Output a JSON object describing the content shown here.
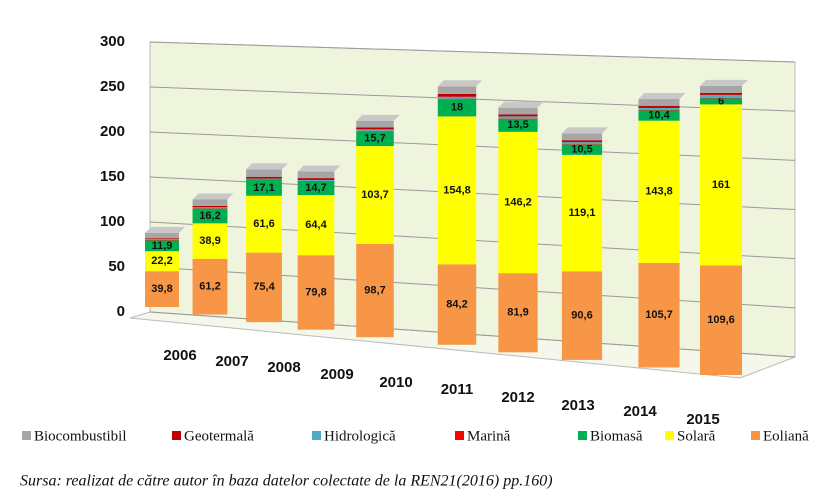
{
  "chart_data": {
    "type": "bar3d_stacked",
    "categories": [
      "2006",
      "2007",
      "2008",
      "2009",
      "2010",
      "2011",
      "2012",
      "2013",
      "2014",
      "2015"
    ],
    "series": [
      {
        "name": "Eoliană",
        "color": "#f79646",
        "values": [
          39.8,
          61.2,
          75.4,
          79.8,
          98.7,
          84.2,
          81.9,
          90.6,
          105.7,
          109.6
        ],
        "value_labels": [
          "39,8",
          "61,2",
          "75,4",
          "79,8",
          "98,7",
          "84,2",
          "81,9",
          "90,6",
          "105,7",
          "109,6"
        ]
      },
      {
        "name": "Solară",
        "color": "#ffff00",
        "values": [
          22.2,
          38.9,
          61.6,
          64.4,
          103.7,
          154.8,
          146.2,
          119.1,
          143.8,
          161
        ],
        "value_labels": [
          "22,2",
          "38,9",
          "61,6",
          "64,4",
          "103,7",
          "154,8",
          "146,2",
          "119,1",
          "143,8",
          "161"
        ]
      },
      {
        "name": "Biomasă",
        "color": "#00b050",
        "values": [
          11.9,
          16.2,
          17.1,
          14.7,
          15.7,
          18,
          13.5,
          10.5,
          10.4,
          6
        ],
        "value_labels": [
          "11,9",
          "16,2",
          "17,1",
          "14,7",
          "15,7",
          "18",
          "13,5",
          "10,5",
          "10,4",
          "6"
        ]
      },
      {
        "name": "Marină",
        "color": "#ff0000",
        "values": [
          0.5,
          0.5,
          0.5,
          0.5,
          0.5,
          0.5,
          0.5,
          0.5,
          0.5,
          0.5
        ]
      },
      {
        "name": "Hidrologică",
        "color": "#4bacc6",
        "values": [
          1,
          1,
          1,
          1,
          1.5,
          2,
          2,
          2,
          2,
          3
        ]
      },
      {
        "name": "Geotermală",
        "color": "#c00000",
        "values": [
          1,
          1.5,
          2,
          2,
          2,
          3,
          2,
          2,
          2,
          2
        ]
      },
      {
        "name": "Biocombustibil",
        "color": "#a6a6a6",
        "values": [
          6,
          7,
          8,
          7,
          7,
          8,
          7,
          7,
          7,
          7
        ]
      }
    ],
    "ylim": [
      0,
      300
    ],
    "yticks": [
      0,
      50,
      100,
      150,
      200,
      250,
      300
    ],
    "grid": true,
    "legend": "bottom",
    "source": "Sursa: realizat de către autor în baza datelor colectate de la REN21(2016) pp.160)"
  }
}
